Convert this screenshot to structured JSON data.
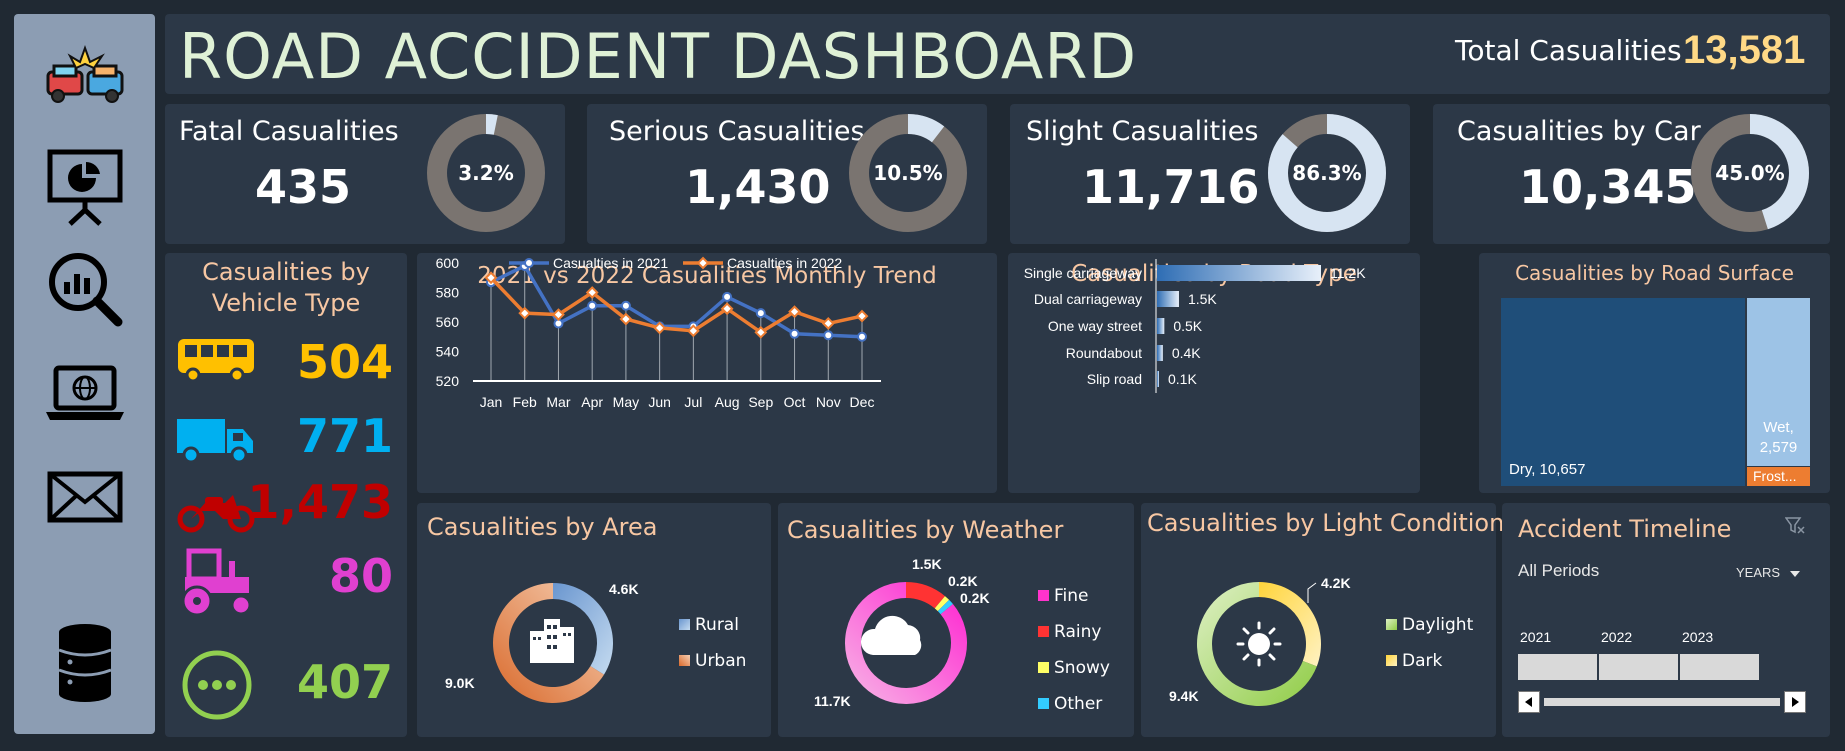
{
  "header": {
    "title": "ROAD ACCIDENT DASHBOARD",
    "total_label": "Total Casualities",
    "total_value": "13,581"
  },
  "sidebar": {
    "icons": [
      "car-crash-icon",
      "presentation-chart-icon",
      "search-analytics-icon",
      "laptop-globe-icon",
      "mail-icon",
      "database-icon"
    ]
  },
  "kpis": [
    {
      "title": "Fatal Casualities",
      "value": "435",
      "percent_label": "3.2%",
      "percent": 0.032,
      "ring_color": "#d7e4f2"
    },
    {
      "title": "Serious Casualities",
      "value": "1,430",
      "percent_label": "10.5%",
      "percent": 0.105,
      "ring_color": "#d7e4f2"
    },
    {
      "title": "Slight Casualities",
      "value": "11,716",
      "percent_label": "86.3%",
      "percent": 0.863,
      "ring_color": "#d7e4f2"
    },
    {
      "title": "Casualities by Car",
      "value": "10,345",
      "percent_label": "45.0%",
      "percent": 0.45,
      "ring_color": "#d7e4f2"
    }
  ],
  "vehicle": {
    "title_line1": "Casualities by",
    "title_line2": "Vehicle Type",
    "items": [
      {
        "icon": "bus-icon",
        "value": "504",
        "color": "#ffc000"
      },
      {
        "icon": "truck-icon",
        "value": "771",
        "color": "#00b0f0"
      },
      {
        "icon": "motorcycle-icon",
        "value": "1,473",
        "color": "#c00000"
      },
      {
        "icon": "tractor-icon",
        "value": "80",
        "color": "#e040d0"
      },
      {
        "icon": "other-icon",
        "value": "407",
        "color": "#92d050"
      }
    ]
  },
  "trend": {
    "title": "2021 vs 2022 Casualities Monthly Trend"
  },
  "road_type": {
    "title": "Casualities by Road Type"
  },
  "road_surface": {
    "title": "Casualities by Road Surface",
    "dry_label": "Dry,  10,657",
    "wet_label_1": "Wet,",
    "wet_label_2": "2,579",
    "frost_label": "Frost..."
  },
  "area": {
    "title": "Casualities by Area",
    "legend": [
      "Rural",
      "Urban"
    ],
    "labels": [
      "4.6K",
      "9.0K"
    ]
  },
  "weather": {
    "title": "Casualities by Weather",
    "legend": [
      "Fine",
      "Rainy",
      "Snowy",
      "Other"
    ],
    "labels": [
      "1.5K",
      "0.2K",
      "0.2K",
      "11.7K"
    ]
  },
  "light": {
    "title": "Casualities by Light Condition",
    "legend": [
      "Daylight",
      "Dark"
    ],
    "labels": [
      "4.2K",
      "9.4K"
    ]
  },
  "timeline": {
    "title": "Accident Timeline",
    "period_label": "All Periods",
    "unit_label": "YEARS",
    "years": [
      "2021",
      "2022",
      "2023"
    ]
  },
  "chart_data": [
    {
      "type": "line",
      "title": "2021 vs 2022 Casualities Monthly Trend",
      "categories": [
        "Jan",
        "Feb",
        "Mar",
        "Apr",
        "May",
        "Jun",
        "Jul",
        "Aug",
        "Sep",
        "Oct",
        "Nov",
        "Dec"
      ],
      "ylim": [
        520,
        600
      ],
      "yticks": [
        "520",
        "540",
        "560",
        "580",
        "600"
      ],
      "series": [
        {
          "name": "Casualties in 2021",
          "color": "#4472c4",
          "values": [
            587,
            598,
            559,
            571,
            571,
            557,
            557,
            577,
            566,
            552,
            551,
            550
          ]
        },
        {
          "name": "Casualties in 2022",
          "color": "#ed7d31",
          "values": [
            590,
            566,
            565,
            580,
            562,
            556,
            554,
            569,
            553,
            567,
            559,
            564
          ]
        }
      ]
    },
    {
      "type": "bar",
      "title": "Casualities by Road Type",
      "categories": [
        "Single carriageway",
        "Dual carriageway",
        "One way street",
        "Roundabout",
        "Slip road"
      ],
      "values": [
        11.2,
        1.5,
        0.5,
        0.4,
        0.1
      ],
      "labels": [
        "11.2K",
        "1.5K",
        "0.5K",
        "0.4K",
        "0.1K"
      ]
    },
    {
      "type": "bar",
      "title": "Casualities by Road Surface",
      "categories": [
        "Dry",
        "Wet",
        "Frost"
      ],
      "values": [
        10657,
        2579,
        345
      ]
    },
    {
      "type": "pie",
      "title": "Casualities by Area",
      "categories": [
        "Rural",
        "Urban"
      ],
      "values": [
        4.6,
        9.0
      ],
      "colors": [
        "#a8c6e6",
        "#e8854a"
      ]
    },
    {
      "type": "pie",
      "title": "Casualities by Weather",
      "categories": [
        "Fine",
        "Rainy",
        "Snowy",
        "Other"
      ],
      "values": [
        11.7,
        1.5,
        0.2,
        0.2
      ],
      "colors": [
        "#ff33cc",
        "#ff3333",
        "#ffff66",
        "#33ccff"
      ]
    },
    {
      "type": "pie",
      "title": "Casualities by Light Condition",
      "categories": [
        "Daylight",
        "Dark"
      ],
      "values": [
        9.4,
        4.2
      ],
      "colors": [
        "#92d050",
        "#ffe699"
      ]
    }
  ]
}
